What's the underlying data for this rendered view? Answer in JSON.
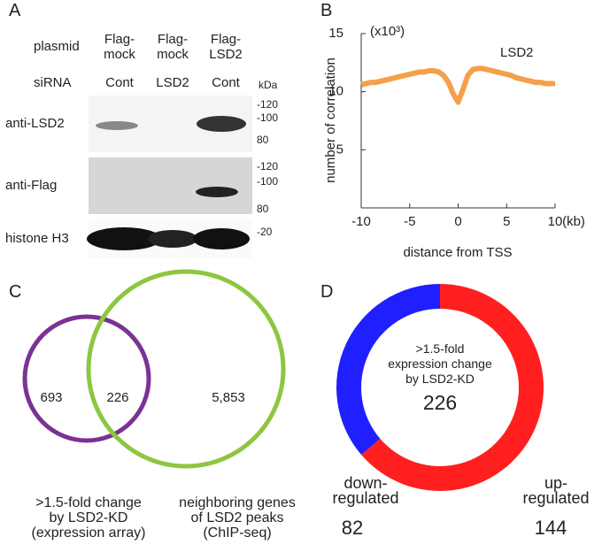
{
  "blot": {
    "label": "A",
    "header_rows": [
      {
        "label": "plasmid",
        "lanes": [
          "Flag-\nmock",
          "Flag-\nmock",
          "Flag-\nLSD2"
        ]
      },
      {
        "label": "siRNA",
        "lanes": [
          "Cont",
          "LSD2",
          "Cont"
        ]
      }
    ],
    "unit": "kDa",
    "panels": [
      {
        "label": "anti-LSD2",
        "markers": [
          "-120",
          "-100",
          "80"
        ]
      },
      {
        "label": "anti-Flag",
        "markers": [
          "-120",
          "-100",
          "80"
        ]
      },
      {
        "label": "histone H3",
        "markers": [
          "-20"
        ]
      }
    ]
  },
  "venn": {
    "label": "C",
    "sets": [
      {
        "label": ">1.5-fold change\nby LSD2-KD\n(expression array)",
        "color": "#7b3294"
      },
      {
        "label": "neighboring genes\nof LSD2 peaks\n(ChIP-seq)",
        "color": "#8dc63f"
      }
    ],
    "regions": [
      "693",
      "226",
      "5,853"
    ]
  },
  "chart_data": [
    {
      "type": "line",
      "panel_label": "B",
      "xlabel": "distance from TSS",
      "ylabel": "number of correlation",
      "x_unit_label": "(kb)",
      "y_unit_label": "(x10³)",
      "xlim": [
        -10,
        10
      ],
      "ylim": [
        0,
        15
      ],
      "xticks": [
        -10,
        -5,
        0,
        5,
        10
      ],
      "yticks": [
        5,
        10,
        15
      ],
      "x": [
        -10,
        -9.5,
        -9,
        -8.5,
        -8,
        -7.5,
        -7,
        -6.5,
        -6,
        -5.5,
        -5,
        -4.5,
        -4,
        -3.5,
        -3,
        -2.5,
        -2,
        -1.5,
        -1,
        -0.5,
        0,
        0.5,
        1,
        1.5,
        2,
        2.5,
        3,
        3.5,
        4,
        4.5,
        5,
        5.5,
        6,
        6.5,
        7,
        7.5,
        8,
        8.5,
        9,
        9.5,
        10
      ],
      "series": [
        {
          "name": "LSD2",
          "color": "#f4a04a",
          "values": [
            10.6,
            10.7,
            10.8,
            10.8,
            10.9,
            11.0,
            11.1,
            11.2,
            11.3,
            11.4,
            11.5,
            11.6,
            11.7,
            11.7,
            11.8,
            11.8,
            11.7,
            11.4,
            10.8,
            9.8,
            9.1,
            10.2,
            11.4,
            11.9,
            12.0,
            12.0,
            11.9,
            11.8,
            11.7,
            11.6,
            11.5,
            11.4,
            11.2,
            11.1,
            11.0,
            10.9,
            10.8,
            10.8,
            10.7,
            10.7,
            10.7
          ]
        }
      ]
    },
    {
      "type": "donut",
      "panel_label": "D",
      "center_label": ">1.5-fold\nexpression change\nby LSD2-KD",
      "total": 226,
      "categories": [
        "down-\nregulated",
        "up-\nregulated"
      ],
      "values": [
        82,
        144
      ],
      "colors": [
        "#1f1fff",
        "#ff1f1f"
      ]
    }
  ]
}
